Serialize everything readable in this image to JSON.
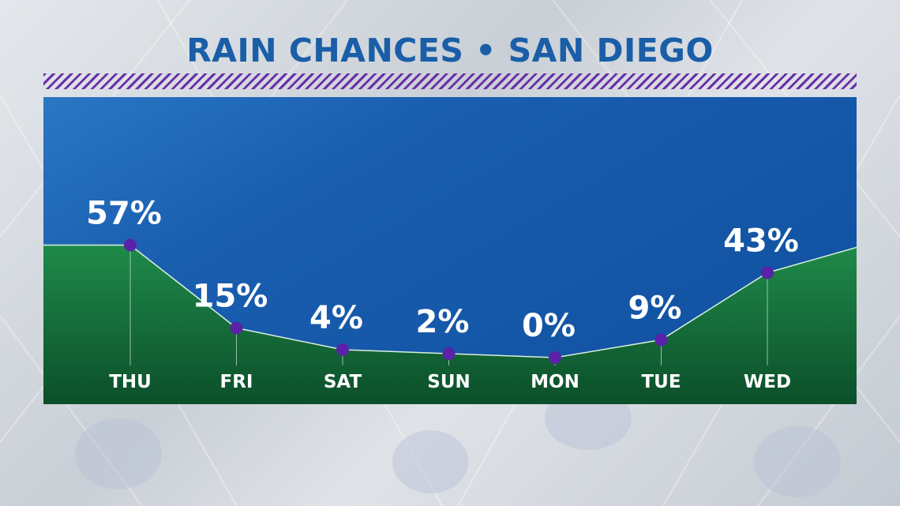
{
  "title": "RAIN CHANCES • SAN DIEGO",
  "colors": {
    "title": "#1a5ea8",
    "stripe": "#6a2fa8",
    "sky": "#0f4f9e",
    "fill_top": "#1f8a4a",
    "fill_bottom": "#0c4f2a",
    "point": "#5a22a8"
  },
  "chart_data": {
    "type": "area",
    "categories": [
      "THU",
      "FRI",
      "SAT",
      "SUN",
      "MON",
      "TUE",
      "WED"
    ],
    "values": [
      57,
      15,
      4,
      2,
      0,
      9,
      43
    ],
    "labels": [
      "57%",
      "15%",
      "4%",
      "2%",
      "0%",
      "9%",
      "43%"
    ],
    "ylim": [
      0,
      100
    ],
    "unit": "%",
    "grid": false,
    "legend": "none"
  }
}
